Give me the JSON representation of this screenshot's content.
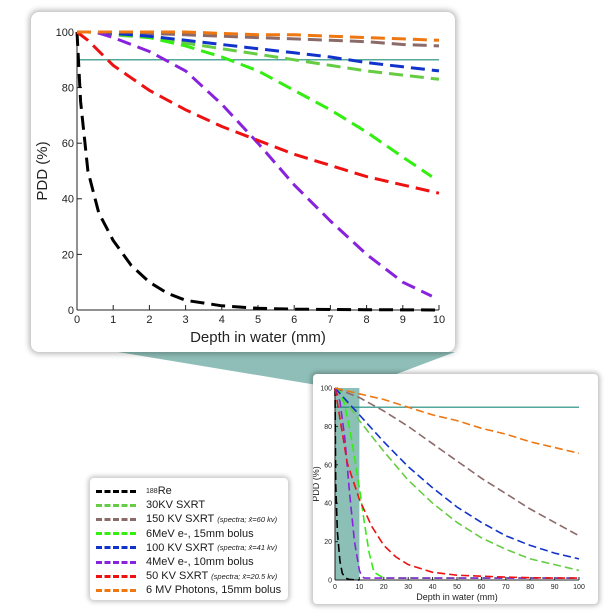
{
  "chart_data": [
    {
      "type": "line",
      "title": "",
      "xlabel": "Depth in water (mm)",
      "ylabel": "PDD (%)",
      "xlim": [
        0,
        10
      ],
      "ylim": [
        0,
        100
      ],
      "xticks": [
        0,
        1,
        2,
        3,
        4,
        5,
        6,
        7,
        8,
        9,
        10
      ],
      "yticks": [
        0,
        20,
        40,
        60,
        80,
        100
      ],
      "reference_line_y": 90,
      "series": [
        {
          "id": "re188",
          "color": "#000000",
          "x": [
            0,
            0.1,
            0.3,
            0.6,
            1,
            1.5,
            2,
            2.5,
            3,
            4,
            5,
            6,
            8,
            10
          ],
          "y": [
            100,
            75,
            50,
            35,
            25,
            16,
            10,
            6,
            3.5,
            1.5,
            0.6,
            0.3,
            0.1,
            0
          ]
        },
        {
          "id": "kv30",
          "color": "#66cc44",
          "x": [
            0,
            0.3,
            1,
            2,
            3,
            4,
            5,
            6,
            7,
            8,
            9,
            10
          ],
          "y": [
            100,
            100,
            99,
            98,
            96,
            94,
            92,
            90,
            88,
            86,
            84.5,
            83
          ]
        },
        {
          "id": "kv150",
          "color": "#8b6a6a",
          "x": [
            0,
            0.5,
            1,
            2,
            3,
            4,
            5,
            6,
            7,
            8,
            9,
            10
          ],
          "y": [
            100,
            100,
            99.8,
            99.5,
            99,
            98.5,
            98,
            97.5,
            97,
            96.5,
            95.5,
            95
          ]
        },
        {
          "id": "mev6",
          "color": "#33ee11",
          "x": [
            0,
            0.5,
            1,
            2,
            3,
            4,
            5,
            6,
            7,
            8,
            9,
            9.8
          ],
          "y": [
            100,
            100,
            99.5,
            98,
            95,
            91,
            86,
            79,
            72,
            64,
            55,
            48
          ]
        },
        {
          "id": "kv100",
          "color": "#1133cc",
          "x": [
            0,
            0.5,
            1,
            2,
            3,
            4,
            5,
            6,
            7,
            8,
            9,
            10
          ],
          "y": [
            100,
            100,
            99.5,
            98.5,
            97,
            95.5,
            94,
            92.5,
            91,
            89,
            87.5,
            86
          ]
        },
        {
          "id": "mev4",
          "color": "#8822dd",
          "x": [
            0,
            0.5,
            1,
            2,
            3,
            4,
            5,
            6,
            7,
            8,
            9,
            9.8
          ],
          "y": [
            100,
            100,
            98,
            93,
            86,
            74,
            60,
            45,
            32,
            20,
            10,
            5
          ]
        },
        {
          "id": "kv50",
          "color": "#ee1111",
          "x": [
            0,
            0.3,
            1,
            2,
            3,
            4,
            5,
            6,
            7,
            8,
            9,
            10
          ],
          "y": [
            100,
            97,
            88,
            79,
            72,
            66,
            61,
            56,
            52,
            48,
            45,
            42
          ]
        },
        {
          "id": "mv6",
          "color": "#ee7711",
          "x": [
            0,
            1,
            2,
            3,
            4,
            5,
            6,
            7,
            8,
            9,
            10
          ],
          "y": [
            100,
            100,
            100,
            100,
            99.5,
            99,
            99,
            98.5,
            98,
            97.5,
            97
          ]
        }
      ]
    },
    {
      "type": "line",
      "title": "",
      "xlabel": "Depth in water (mm)",
      "ylabel": "PDD (%)",
      "xlim": [
        0,
        100
      ],
      "ylim": [
        0,
        100
      ],
      "xticks": [
        0,
        10,
        20,
        30,
        40,
        50,
        60,
        70,
        80,
        90,
        100
      ],
      "yticks": [
        0,
        20,
        40,
        60,
        80,
        100
      ],
      "reference_line_y": 90,
      "highlight_x_range": [
        0,
        10
      ],
      "series": [
        {
          "id": "re188",
          "color": "#000000",
          "x": [
            0,
            0.3,
            1,
            2,
            3,
            4,
            5,
            6,
            8,
            10
          ],
          "y": [
            100,
            50,
            25,
            10,
            3.5,
            1.5,
            0.6,
            0.3,
            0.1,
            0
          ]
        },
        {
          "id": "kv30",
          "color": "#66cc44",
          "x": [
            0,
            5,
            10,
            20,
            30,
            40,
            50,
            60,
            70,
            80,
            90,
            100
          ],
          "y": [
            100,
            92,
            83,
            67,
            52,
            40,
            30,
            22,
            16,
            11,
            8,
            5
          ]
        },
        {
          "id": "kv150",
          "color": "#8b6a6a",
          "x": [
            0,
            10,
            20,
            30,
            40,
            50,
            60,
            70,
            80,
            90,
            100
          ],
          "y": [
            100,
            95,
            88,
            80,
            71,
            62,
            53,
            45,
            37,
            30,
            23
          ]
        },
        {
          "id": "mev6",
          "color": "#33ee11",
          "x": [
            0,
            2,
            4,
            6,
            8,
            10,
            12,
            14,
            16,
            20,
            100
          ],
          "y": [
            100,
            98,
            91,
            79,
            64,
            48,
            30,
            14,
            4,
            1,
            1
          ]
        },
        {
          "id": "kv100",
          "color": "#1133cc",
          "x": [
            0,
            10,
            20,
            30,
            40,
            50,
            60,
            70,
            80,
            90,
            100
          ],
          "y": [
            100,
            86,
            72,
            59,
            48,
            38,
            30,
            23,
            18,
            14,
            11
          ]
        },
        {
          "id": "mev4",
          "color": "#8822dd",
          "x": [
            0,
            2,
            4,
            6,
            8,
            10,
            11,
            12,
            100
          ],
          "y": [
            100,
            93,
            74,
            45,
            20,
            5,
            2,
            1,
            1
          ]
        },
        {
          "id": "kv50",
          "color": "#ee1111",
          "x": [
            0,
            5,
            10,
            15,
            20,
            25,
            30,
            40,
            50,
            60,
            70,
            80,
            90,
            100
          ],
          "y": [
            100,
            61,
            42,
            28,
            18,
            12,
            8,
            4,
            2.5,
            2,
            1.5,
            1.2,
            1,
            1
          ]
        },
        {
          "id": "mv6",
          "color": "#ee7711",
          "x": [
            0,
            10,
            20,
            30,
            40,
            50,
            60,
            70,
            80,
            90,
            100
          ],
          "y": [
            100,
            97,
            94,
            90,
            86,
            83,
            79,
            76,
            72,
            69,
            66
          ]
        }
      ]
    }
  ],
  "legend": {
    "entries": [
      {
        "id": "re188",
        "color": "#000000",
        "sup": "188",
        "label": "Re",
        "note": ""
      },
      {
        "id": "kv30",
        "color": "#66cc44",
        "sup": "",
        "label": "30KV SXRT",
        "note": ""
      },
      {
        "id": "kv150",
        "color": "#8b6a6a",
        "sup": "",
        "label": "150 KV SXRT",
        "note": "(spectra; x̄=60 kv)"
      },
      {
        "id": "mev6",
        "color": "#33ee11",
        "sup": "",
        "label": "6MeV e-, 15mm bolus",
        "note": ""
      },
      {
        "id": "kv100",
        "color": "#1133cc",
        "sup": "",
        "label": "100 KV SXRT",
        "note": "(spectra; x̄=41 kv)"
      },
      {
        "id": "mev4",
        "color": "#8822dd",
        "sup": "",
        "label": "4MeV e-, 10mm bolus",
        "note": ""
      },
      {
        "id": "kv50",
        "color": "#ee1111",
        "sup": "",
        "label": "50 KV SXRT",
        "note": "(spectra; x̄=20.5 kv)"
      },
      {
        "id": "mv6",
        "color": "#ee7711",
        "sup": "",
        "label": "6 MV Photons, 15mm bolus",
        "note": ""
      }
    ]
  },
  "colors": {
    "reference_line": "#1a8a7a",
    "highlight": "#2e8b78",
    "connector": "#6aa8a0"
  }
}
